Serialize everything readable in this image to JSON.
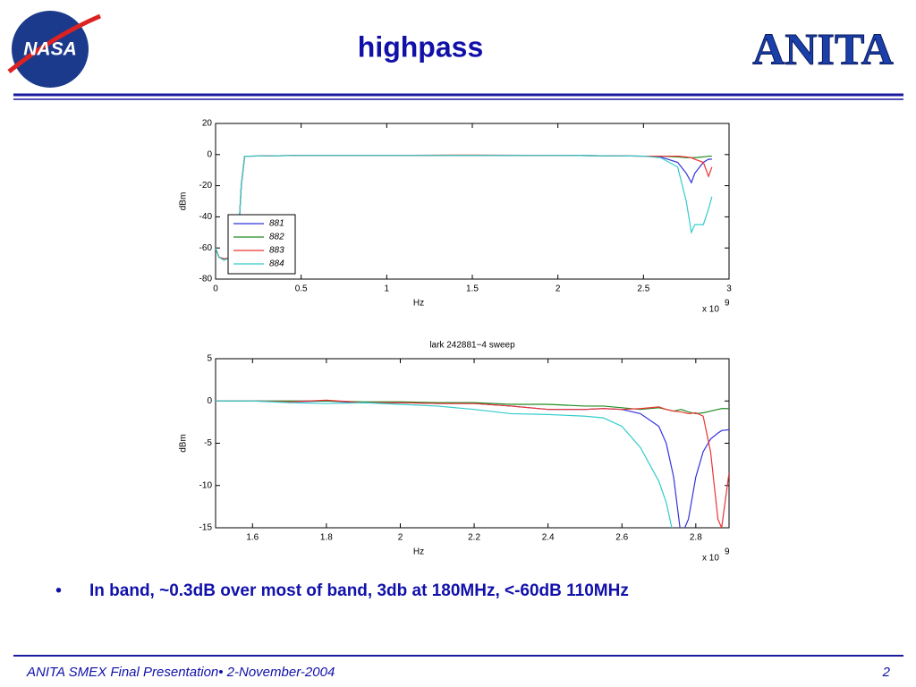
{
  "header": {
    "title": "highpass",
    "logo_left": "NASA",
    "logo_right": "ANITA"
  },
  "chart_data": [
    {
      "type": "line",
      "x_label": "Hz",
      "y_label": "dBm",
      "x_multiplier": "x 10",
      "x_multiplier_exp": "9",
      "x": [
        0,
        0.02,
        0.05,
        0.1,
        0.13,
        0.15,
        0.17,
        0.2,
        0.5,
        1,
        1.5,
        2,
        2.5,
        2.6,
        2.7,
        2.75,
        2.78,
        2.8,
        2.85,
        2.88,
        2.9
      ],
      "xlim": [
        0,
        3
      ],
      "xticks": [
        0,
        0.5,
        1,
        1.5,
        2,
        2.5,
        3
      ],
      "ylim": [
        -80,
        20
      ],
      "yticks": [
        -80,
        -60,
        -40,
        -20,
        0,
        20
      ],
      "legend": "lower-left",
      "series": [
        {
          "name": "881",
          "color": "#3333dd",
          "values": [
            -60,
            -66,
            -67,
            -67,
            -60,
            -20,
            -1,
            -1,
            -0.5,
            -0.5,
            -0.5,
            -0.5,
            -1,
            -1.5,
            -5,
            -12,
            -18,
            -12,
            -5,
            -3,
            -3
          ]
        },
        {
          "name": "882",
          "color": "#228b22",
          "values": [
            -60,
            -66,
            -67,
            -66,
            -60,
            -20,
            -1,
            -1,
            -0.5,
            -0.5,
            -0.5,
            -0.5,
            -1,
            -1,
            -1.5,
            -2,
            -2,
            -2,
            -1.5,
            -1,
            -1
          ]
        },
        {
          "name": "883",
          "color": "#ee3333",
          "values": [
            -60,
            -66,
            -67,
            -66,
            -60,
            -20,
            -1,
            -1,
            -0.5,
            -0.5,
            -0.3,
            -0.5,
            -1,
            -1,
            -1,
            -1.5,
            -2,
            -3,
            -5,
            -14,
            -8
          ]
        },
        {
          "name": "884",
          "color": "#33cccc",
          "values": [
            -60,
            -66,
            -68,
            -65,
            -60,
            -20,
            -1,
            -1,
            -0.5,
            -0.5,
            -0.5,
            -0.5,
            -1,
            -2,
            -8,
            -30,
            -50,
            -45,
            -45,
            -35,
            -27
          ]
        }
      ]
    },
    {
      "type": "line",
      "title": "lark 242881−4 sweep",
      "x_label": "Hz",
      "y_label": "dBm",
      "x_multiplier": "x 10",
      "x_multiplier_exp": "9",
      "x": [
        1.5,
        1.6,
        1.7,
        1.8,
        1.9,
        2.0,
        2.1,
        2.2,
        2.3,
        2.4,
        2.5,
        2.55,
        2.6,
        2.65,
        2.7,
        2.72,
        2.74,
        2.76,
        2.78,
        2.8,
        2.82,
        2.84,
        2.86,
        2.87,
        2.89
      ],
      "xlim": [
        1.5,
        2.89
      ],
      "xticks": [
        1.6,
        1.8,
        2,
        2.2,
        2.4,
        2.6,
        2.8
      ],
      "ylim": [
        -15,
        5
      ],
      "yticks": [
        -15,
        -10,
        -5,
        0,
        5
      ],
      "series": [
        {
          "name": "881",
          "color": "#3333dd",
          "values": [
            0,
            0,
            -0.1,
            0,
            -0.2,
            -0.2,
            -0.3,
            -0.3,
            -0.6,
            -1,
            -1,
            -0.9,
            -1,
            -1.5,
            -3,
            -5,
            -9,
            -16,
            -14,
            -9,
            -6,
            -4.5,
            -3.8,
            -3.5,
            -3.4
          ]
        },
        {
          "name": "882",
          "color": "#228b22",
          "values": [
            0,
            0,
            0,
            0,
            -0.1,
            -0.1,
            -0.2,
            -0.2,
            -0.4,
            -0.4,
            -0.6,
            -0.6,
            -0.8,
            -1,
            -0.8,
            -1,
            -1.2,
            -1,
            -1.3,
            -1.5,
            -1.4,
            -1.2,
            -1,
            -0.9,
            -0.9
          ]
        },
        {
          "name": "883",
          "color": "#ee3333",
          "values": [
            0,
            0,
            -0.1,
            0.1,
            -0.2,
            -0.2,
            -0.3,
            -0.3,
            -0.6,
            -1,
            -1,
            -0.9,
            -1,
            -0.9,
            -0.7,
            -1,
            -1.2,
            -1.3,
            -1.5,
            -1.4,
            -1.8,
            -6,
            -14,
            -15,
            -8.5
          ]
        },
        {
          "name": "884",
          "color": "#33cccc",
          "values": [
            0,
            0,
            -0.2,
            -0.3,
            -0.2,
            -0.4,
            -0.6,
            -1,
            -1.5,
            -1.6,
            -1.8,
            -2,
            -3,
            -5.5,
            -9.5,
            -12,
            -16,
            null,
            null,
            null,
            null,
            null,
            null,
            null,
            null
          ]
        }
      ]
    }
  ],
  "bullets": [
    "In band, ~0.3dB over most of band, 3db at 180MHz, <-60dB 110MHz"
  ],
  "footer": {
    "left": "ANITA SMEX Final Presentation• 2-November-2004",
    "page": "2"
  }
}
